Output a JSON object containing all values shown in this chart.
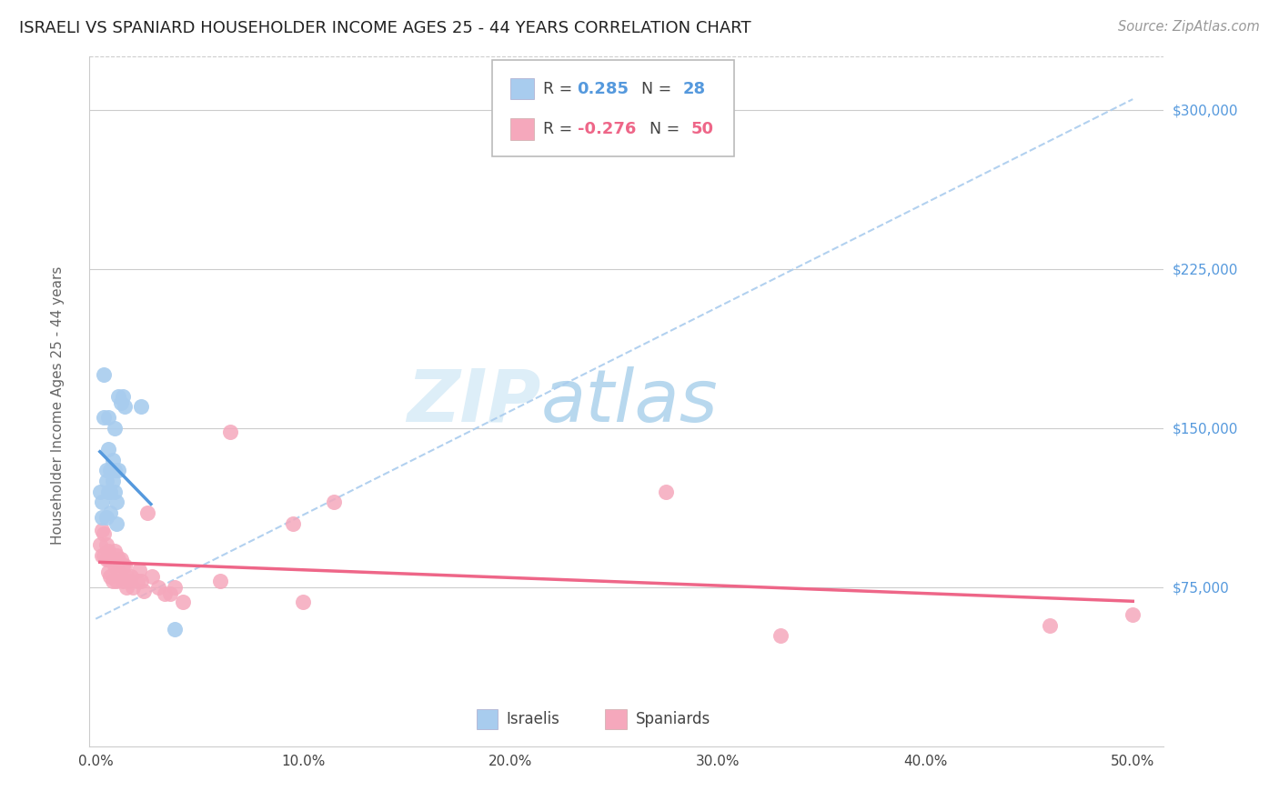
{
  "title": "ISRAELI VS SPANIARD HOUSEHOLDER INCOME AGES 25 - 44 YEARS CORRELATION CHART",
  "source": "Source: ZipAtlas.com",
  "ylabel": "Householder Income Ages 25 - 44 years",
  "ytick_labels": [
    "$75,000",
    "$150,000",
    "$225,000",
    "$300,000"
  ],
  "ytick_values": [
    75000,
    150000,
    225000,
    300000
  ],
  "ylim": [
    0,
    325000
  ],
  "xlim": [
    -0.003,
    0.515
  ],
  "xticks": [
    0.0,
    0.1,
    0.2,
    0.3,
    0.4,
    0.5
  ],
  "xtick_labels": [
    "0.0%",
    "10.0%",
    "20.0%",
    "30.0%",
    "40.0%",
    "50.0%"
  ],
  "color_israeli": "#A8CCEE",
  "color_spaniard": "#F5A8BC",
  "color_israeli_line": "#5599DD",
  "color_spaniard_line": "#EE6688",
  "color_dashed_line": "#AACCEE",
  "background_color": "#FFFFFF",
  "watermark_zip": "ZIP",
  "watermark_atlas": "atlas",
  "watermark_color_zip": "#DDEEF8",
  "watermark_color_atlas": "#B8D8EE",
  "israeli_x": [
    0.002,
    0.003,
    0.003,
    0.004,
    0.004,
    0.005,
    0.005,
    0.005,
    0.006,
    0.006,
    0.006,
    0.007,
    0.007,
    0.007,
    0.008,
    0.008,
    0.009,
    0.009,
    0.009,
    0.01,
    0.01,
    0.011,
    0.011,
    0.012,
    0.013,
    0.014,
    0.022,
    0.038
  ],
  "israeli_y": [
    120000,
    115000,
    108000,
    175000,
    155000,
    130000,
    125000,
    108000,
    155000,
    140000,
    120000,
    130000,
    120000,
    110000,
    135000,
    125000,
    150000,
    130000,
    120000,
    115000,
    105000,
    165000,
    130000,
    162000,
    165000,
    160000,
    160000,
    55000
  ],
  "spaniard_x": [
    0.002,
    0.003,
    0.003,
    0.004,
    0.004,
    0.005,
    0.005,
    0.006,
    0.006,
    0.006,
    0.007,
    0.007,
    0.008,
    0.008,
    0.009,
    0.009,
    0.01,
    0.01,
    0.011,
    0.011,
    0.012,
    0.012,
    0.013,
    0.013,
    0.014,
    0.015,
    0.015,
    0.016,
    0.017,
    0.018,
    0.02,
    0.021,
    0.022,
    0.023,
    0.025,
    0.027,
    0.03,
    0.033,
    0.036,
    0.038,
    0.042,
    0.06,
    0.065,
    0.095,
    0.1,
    0.115,
    0.275,
    0.33,
    0.46,
    0.5
  ],
  "spaniard_y": [
    95000,
    102000,
    90000,
    100000,
    90000,
    88000,
    95000,
    88000,
    82000,
    92000,
    88000,
    80000,
    88000,
    78000,
    92000,
    85000,
    78000,
    90000,
    88000,
    82000,
    88000,
    80000,
    85000,
    78000,
    85000,
    80000,
    75000,
    78000,
    80000,
    75000,
    78000,
    83000,
    78000,
    73000,
    110000,
    80000,
    75000,
    72000,
    72000,
    75000,
    68000,
    78000,
    148000,
    105000,
    68000,
    115000,
    120000,
    52000,
    57000,
    62000
  ],
  "dashed_line_x0": 0.0,
  "dashed_line_y0": 60000,
  "dashed_line_x1": 0.5,
  "dashed_line_y1": 305000,
  "title_fontsize": 13,
  "source_fontsize": 10.5,
  "axis_label_fontsize": 11,
  "tick_fontsize": 11,
  "watermark_fontsize": 58
}
